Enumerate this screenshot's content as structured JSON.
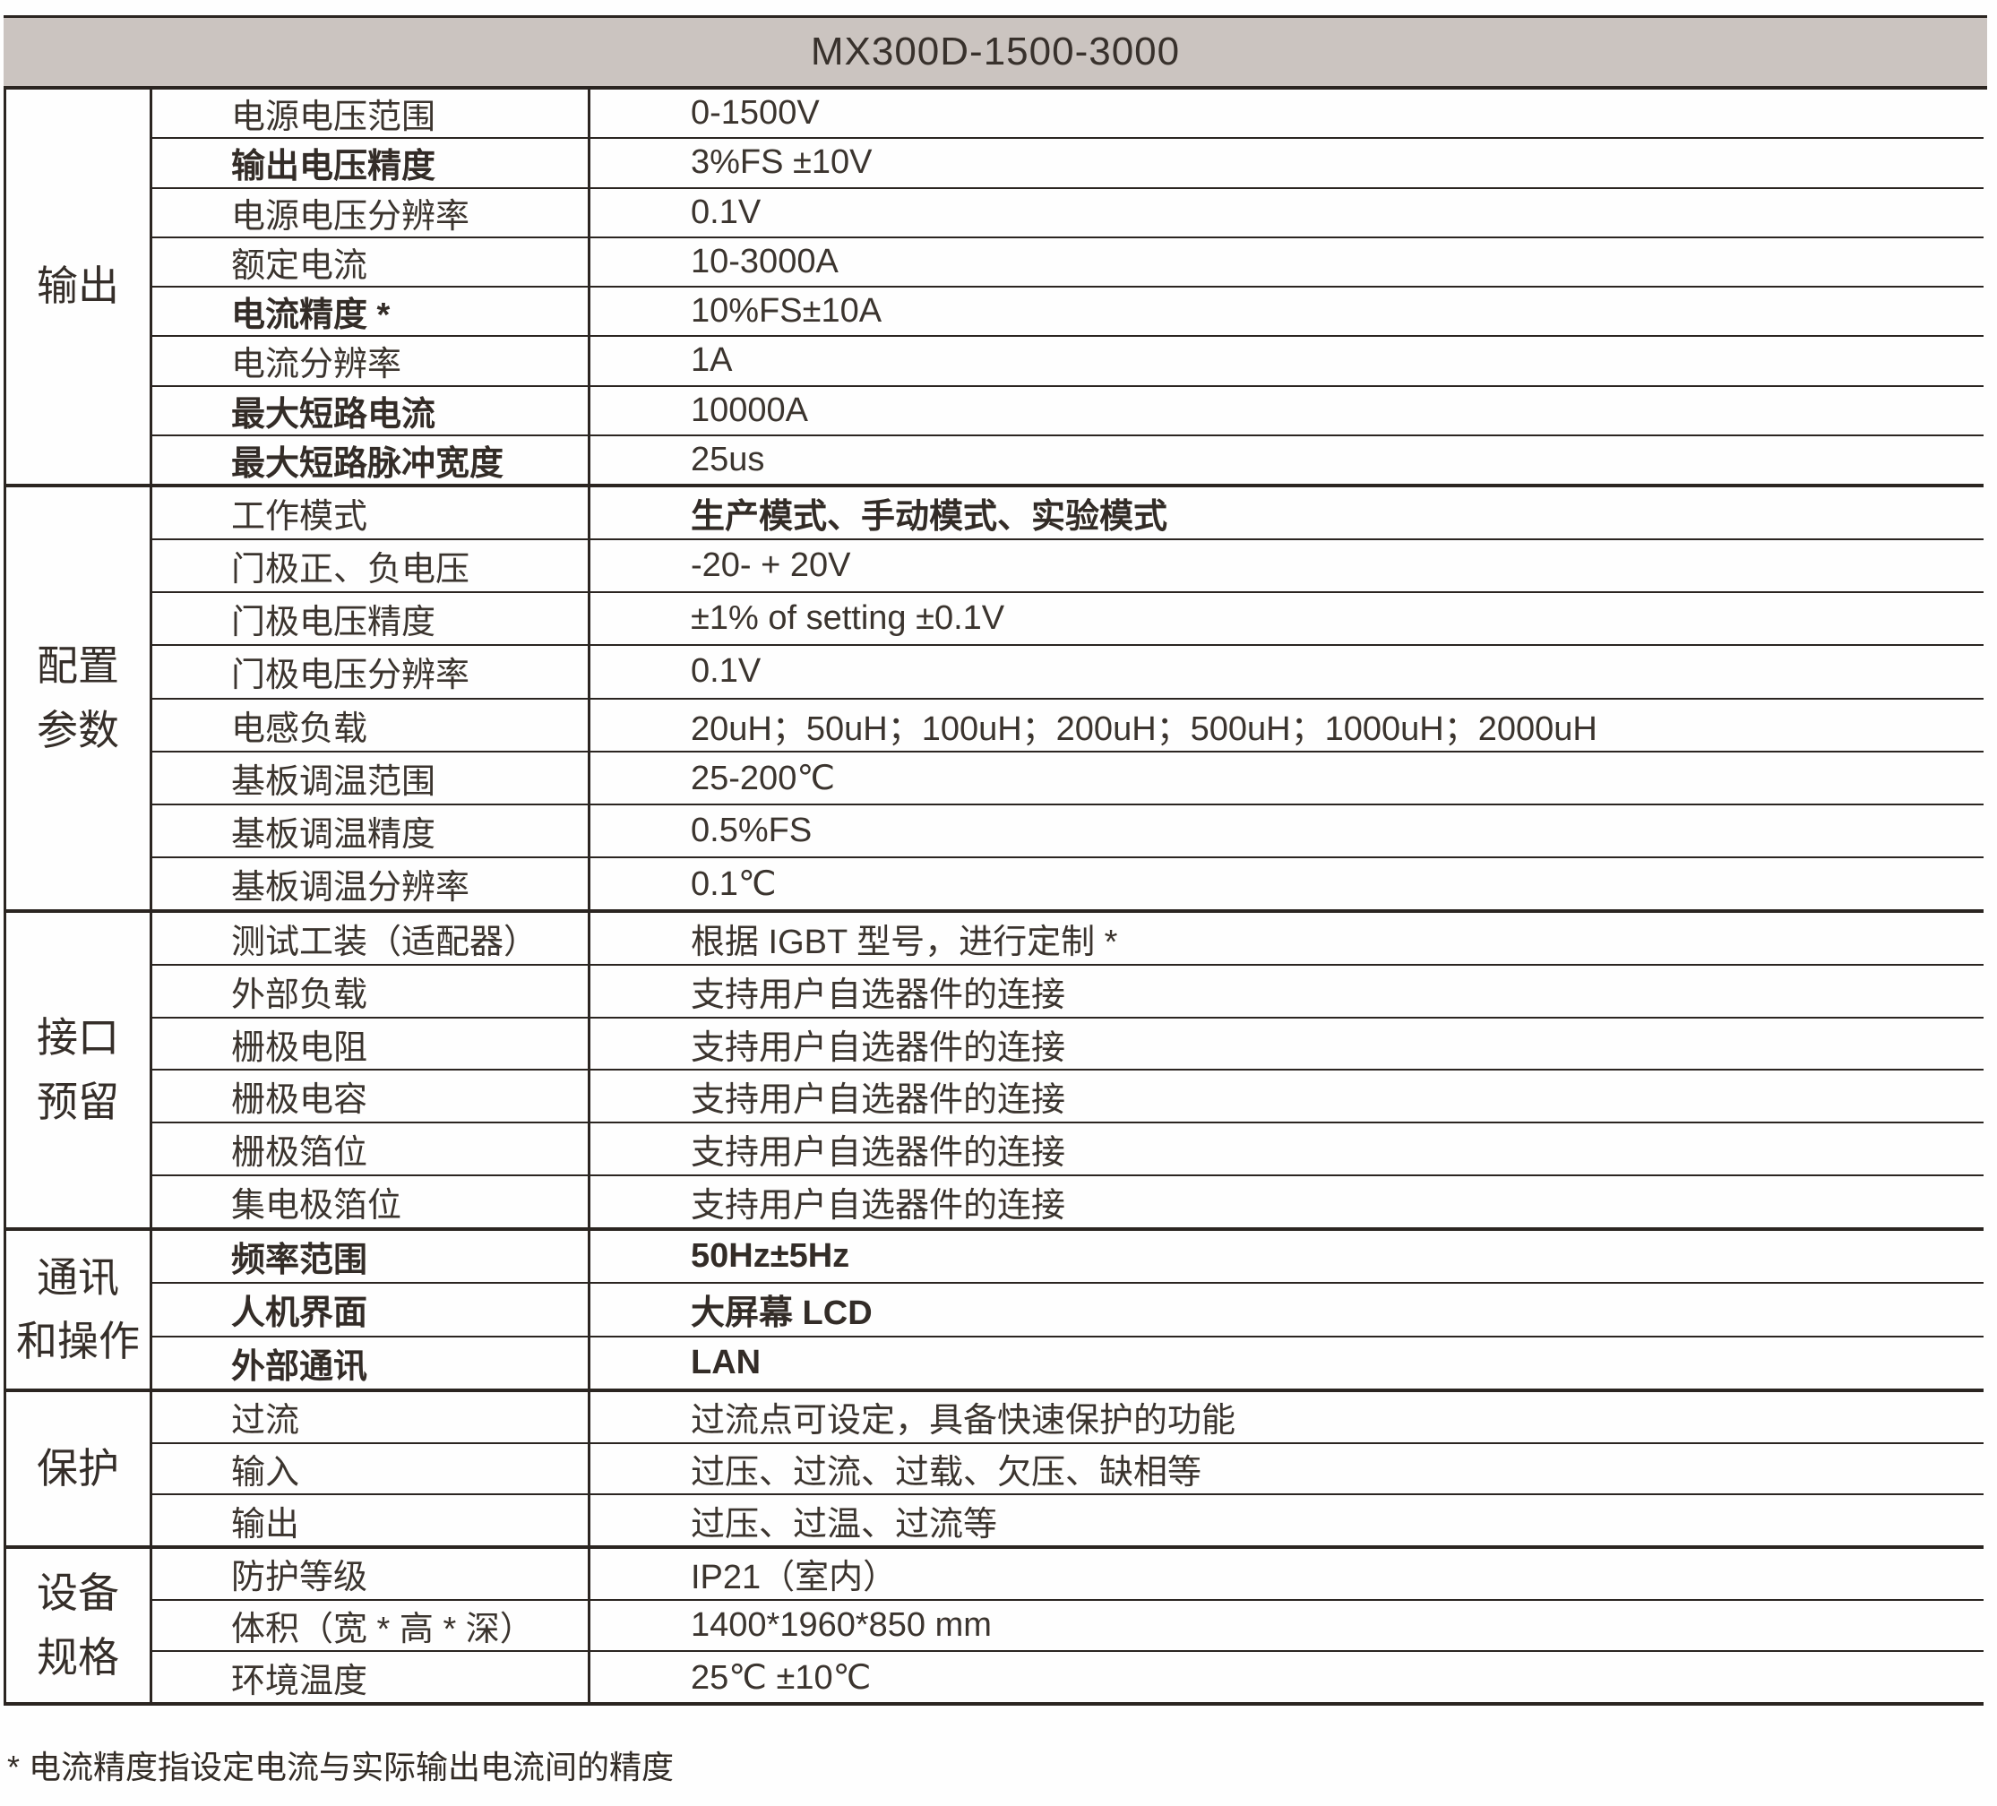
{
  "title": "MX300D-1500-3000",
  "sections": [
    {
      "label": "输出",
      "rows": [
        {
          "param": "电源电压范围",
          "value": "0-1500V"
        },
        {
          "param": "输出电压精度",
          "value": "3%FS ±10V",
          "bold": true
        },
        {
          "param": "电源电压分辨率",
          "value": "0.1V"
        },
        {
          "param": "额定电流",
          "value": "10-3000A"
        },
        {
          "param": "电流精度 *",
          "value": "10%FS±10A",
          "bold": true
        },
        {
          "param": "电流分辨率",
          "value": "1A"
        },
        {
          "param": "最大短路电流",
          "value": "10000A",
          "bold": true
        },
        {
          "param": "最大短路脉冲宽度",
          "value": "25us",
          "bold": true
        }
      ]
    },
    {
      "label": "配置\n参数",
      "rows": [
        {
          "param": "工作模式",
          "value": "生产模式、手动模式、实验模式",
          "bold_value": true
        },
        {
          "param": "门极正、负电压",
          "value": "-20- + 20V"
        },
        {
          "param": "门极电压精度",
          "value": "±1% of setting ±0.1V"
        },
        {
          "param": "门极电压分辨率",
          "value": "0.1V"
        },
        {
          "param": "电感负载",
          "value": "20uH；50uH；100uH；200uH；500uH；1000uH；2000uH"
        },
        {
          "param": "基板调温范围",
          "value": "25-200℃"
        },
        {
          "param": "基板调温精度",
          "value": "0.5%FS"
        },
        {
          "param": "基板调温分辨率",
          "value": "0.1℃"
        }
      ]
    },
    {
      "label": "接口\n预留",
      "rows": [
        {
          "param": "测试工装（适配器）",
          "value": "根据 IGBT 型号，进行定制 *"
        },
        {
          "param": "外部负载",
          "value": "支持用户自选器件的连接"
        },
        {
          "param": "栅极电阻",
          "value": "支持用户自选器件的连接"
        },
        {
          "param": "栅极电容",
          "value": "支持用户自选器件的连接"
        },
        {
          "param": "栅极箔位",
          "value": "支持用户自选器件的连接"
        },
        {
          "param": "集电极箔位",
          "value": "支持用户自选器件的连接"
        }
      ]
    },
    {
      "label": "通讯\n和操作",
      "rows": [
        {
          "param": "频率范围",
          "value": "50Hz±5Hz",
          "bold": true,
          "bold_value": true
        },
        {
          "param": "人机界面",
          "value": "大屏幕 LCD",
          "bold": true,
          "bold_value": true
        },
        {
          "param": "外部通讯",
          "value": "LAN",
          "bold": true,
          "bold_value": true
        }
      ]
    },
    {
      "label": "保护",
      "rows": [
        {
          "param": "过流",
          "value": "过流点可设定，具备快速保护的功能"
        },
        {
          "param": "输入",
          "value": "过压、过流、过载、欠压、缺相等"
        },
        {
          "param": "输出",
          "value": "过压、过温、过流等"
        }
      ]
    },
    {
      "label": "设备\n规格",
      "rows": [
        {
          "param": "防护等级",
          "value": "IP21（室内）"
        },
        {
          "param": "体积（宽 * 高 * 深）",
          "value": "1400*1960*850 mm"
        },
        {
          "param": "环境温度",
          "value": "25℃ ±10℃"
        }
      ]
    }
  ],
  "footnote": "* 电流精度指设定电流与实际输出电流间的精度",
  "colors": {
    "header_bg": "#cbc4c0",
    "line": "#2b2521",
    "text": "#3b342e"
  }
}
